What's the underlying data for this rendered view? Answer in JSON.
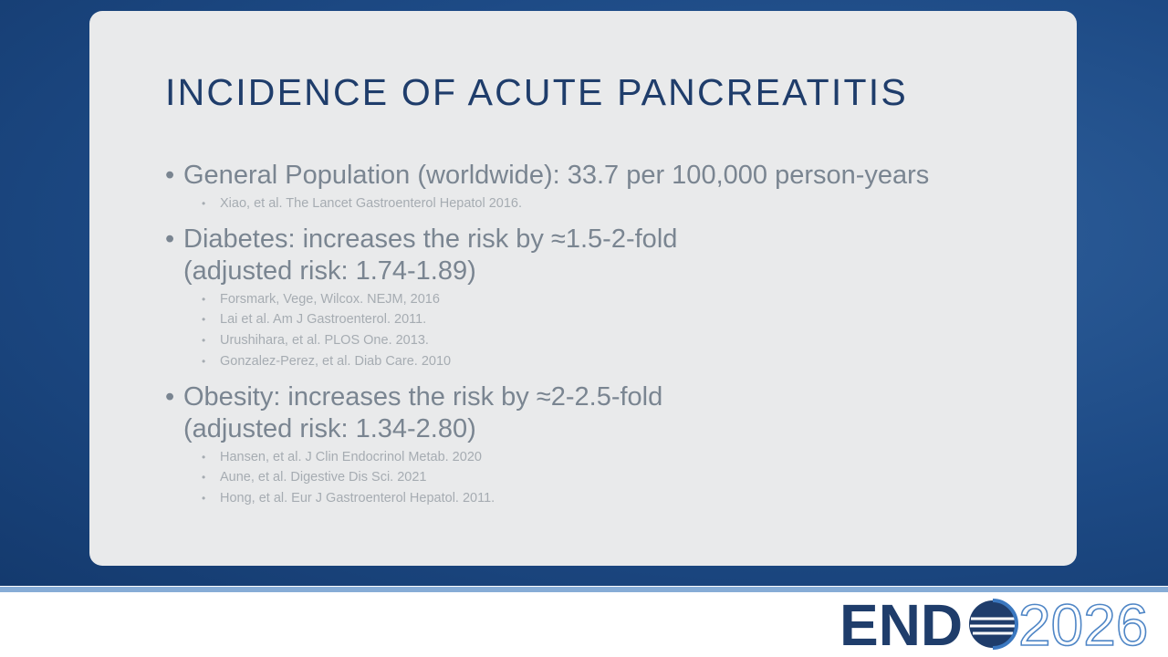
{
  "title": "INCIDENCE OF ACUTE PANCREATITIS",
  "bullets": [
    {
      "lines": [
        "General Population (worldwide): 33.7 per 100,000 person-years"
      ],
      "refs": [
        "Xiao, et al. The Lancet Gastroenterol Hepatol 2016."
      ]
    },
    {
      "lines": [
        "Diabetes: increases the risk by ≈1.5-2-fold",
        "(adjusted risk: 1.74-1.89)"
      ],
      "refs": [
        "Forsmark, Vege, Wilcox. NEJM, 2016",
        "Lai et al. Am J Gastroenterol. 2011.",
        "Urushihara, et al. PLOS One. 2013.",
        "Gonzalez-Perez, et al. Diab Care. 2010"
      ]
    },
    {
      "lines": [
        "Obesity: increases the risk by ≈2-2.5-fold",
        "(adjusted risk: 1.34-2.80)"
      ],
      "refs": [
        "Hansen, et al. J Clin Endocrinol Metab. 2020",
        "Aune, et al. Digestive Dis Sci. 2021",
        "Hong, et al. Eur J Gastroenterol Hepatol. 2011."
      ]
    }
  ],
  "logo": {
    "prefix": "END",
    "suffix": "2026"
  }
}
